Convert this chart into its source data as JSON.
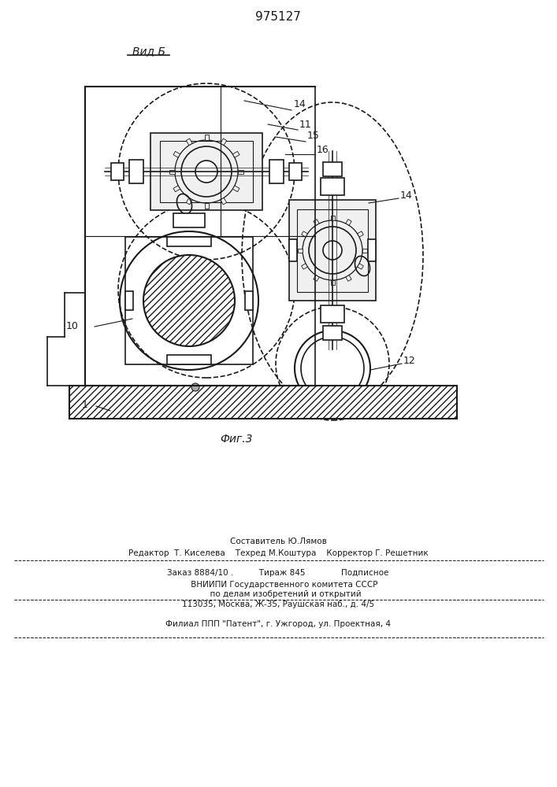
{
  "title": "975127",
  "view_label": "Вид Б",
  "fig_label": "Фиг.3",
  "label1": "1",
  "label10": "10",
  "label11": "11",
  "label12": "12",
  "label14a": "14",
  "label14b": "14",
  "label15": "15",
  "label16": "16",
  "bg_color": "#ffffff",
  "line_color": "#1a1a1a",
  "footer_line1": "Составитель Ю.Лямов",
  "footer_line2": "Редактор  Т. Киселева    Техред М.Коштура    Корректор Г. Решетник",
  "footer_line3": "Заказ 8884/10 .          Тираж 845              Подписное",
  "footer_line4": "     ВНИИПИ Государственного комитета СССР",
  "footer_line5": "      по делам изобретений и открытий",
  "footer_line6": "113035, Москва, Ж-35, Раушская наб., д. 4/5",
  "footer_line7": "Филиал ППП \"Патент\", г. Ужгород, ул. Проектная, 4",
  "lw": 1.2
}
